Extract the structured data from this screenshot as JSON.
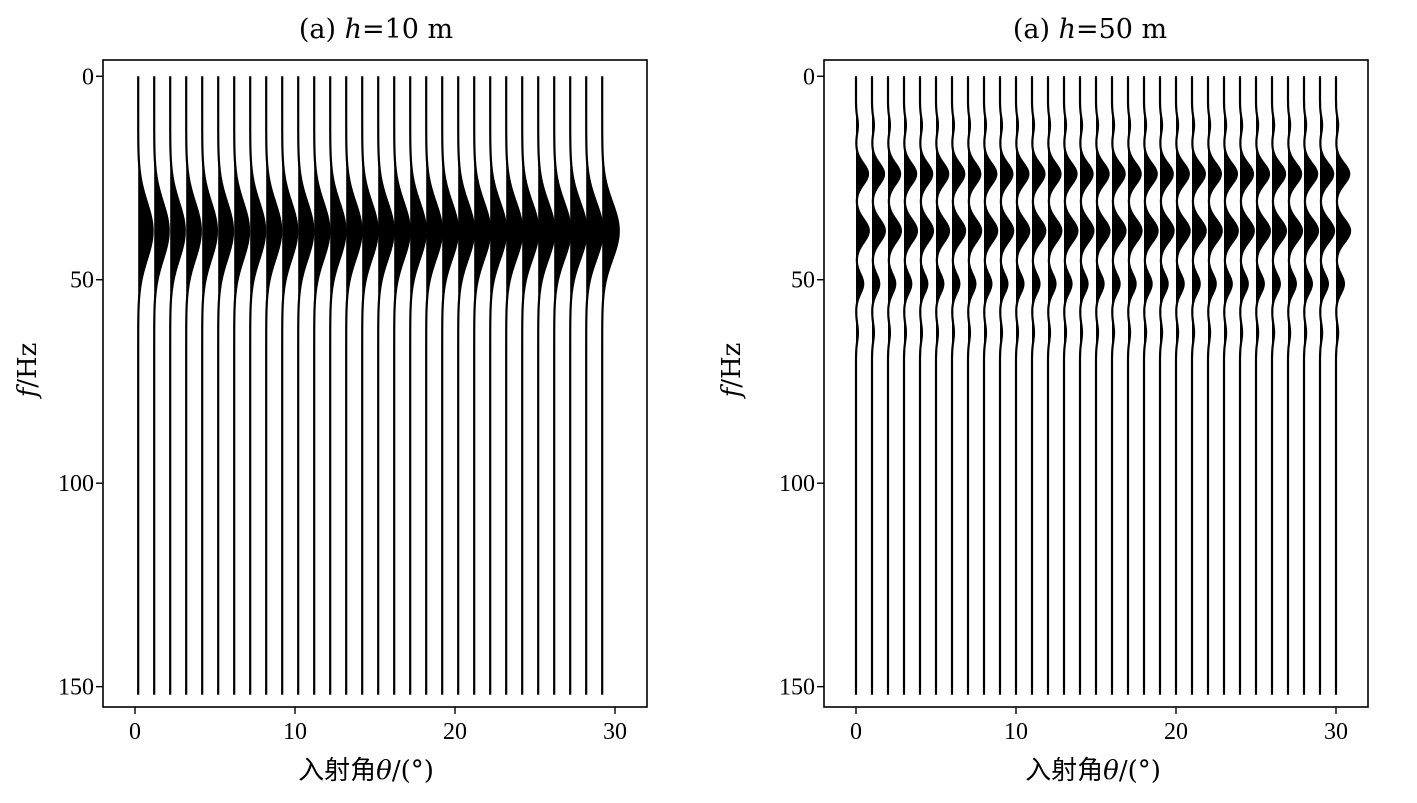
{
  "chart_data": [
    {
      "type": "wiggle",
      "title_prefix": "(a) ",
      "title_var": "h",
      "title_suffix": "=10 m",
      "xlabel_cn": "入射角",
      "xlabel_var": "θ",
      "xlabel_unit": "/(°)",
      "ylabel_var": "f",
      "ylabel_unit": "/Hz",
      "xlim": [
        -2,
        32
      ],
      "ylim": [
        155,
        -4
      ],
      "y_reversed": true,
      "x_ticks": [
        0,
        10,
        20,
        30
      ],
      "y_ticks": [
        0,
        50,
        100,
        150
      ],
      "trace_angles": [
        0.2,
        1.2,
        2.2,
        3.2,
        4.2,
        5.2,
        6.2,
        7.2,
        8.2,
        9.2,
        10.2,
        11.2,
        12.2,
        13.2,
        14.2,
        15.2,
        16.2,
        17.2,
        18.2,
        19.2,
        20.2,
        21.2,
        22.2,
        23.2,
        24.2,
        25.2,
        26.2,
        27.2,
        28.2,
        29.2
      ],
      "freq_range": [
        0,
        152
      ],
      "amplitude_peaks": [
        {
          "center_hz": 38,
          "width_hz": 7,
          "amplitude_deg": 0.9
        }
      ],
      "amplitude_growth_with_angle": 0.15,
      "grid": false
    },
    {
      "type": "wiggle",
      "title_prefix": "(a) ",
      "title_var": "h",
      "title_suffix": "=50 m",
      "xlabel_cn": "入射角",
      "xlabel_var": "θ",
      "xlabel_unit": "/(°)",
      "ylabel_var": "f",
      "ylabel_unit": "/Hz",
      "xlim": [
        -2,
        32
      ],
      "ylim": [
        155,
        -4
      ],
      "y_reversed": true,
      "x_ticks": [
        0,
        10,
        20,
        30
      ],
      "y_ticks": [
        0,
        50,
        100,
        150
      ],
      "trace_angles": [
        0,
        1,
        2,
        3,
        4,
        5,
        6,
        7,
        8,
        9,
        10,
        11,
        12,
        13,
        14,
        15,
        16,
        17,
        18,
        19,
        20,
        21,
        22,
        23,
        24,
        25,
        26,
        27,
        28,
        29,
        30
      ],
      "freq_range": [
        0,
        152
      ],
      "amplitude_peaks": [
        {
          "center_hz": 24,
          "width_hz": 2.6,
          "amplitude_deg": 0.75
        },
        {
          "center_hz": 38,
          "width_hz": 2.8,
          "amplitude_deg": 0.8
        },
        {
          "center_hz": 51,
          "width_hz": 2.4,
          "amplitude_deg": 0.45
        },
        {
          "center_hz": 12,
          "width_hz": 2.0,
          "amplitude_deg": 0.12
        },
        {
          "center_hz": 63,
          "width_hz": 2.2,
          "amplitude_deg": 0.12
        }
      ],
      "amplitude_growth_with_angle": 0.1,
      "grid": false
    }
  ]
}
